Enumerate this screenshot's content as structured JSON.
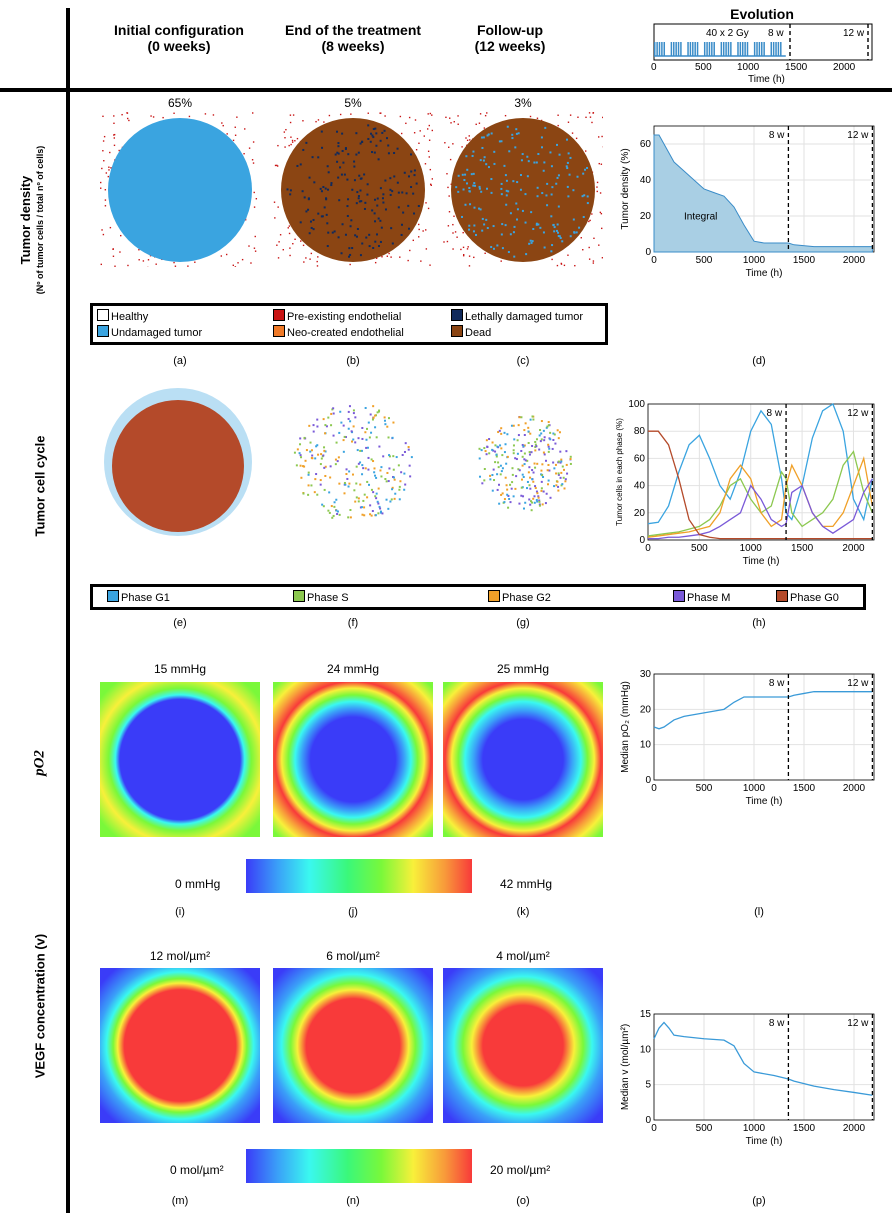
{
  "columns": [
    {
      "title": "Initial configuration",
      "sub": "(0 weeks)"
    },
    {
      "title": "End of the treatment",
      "sub": "(8 weeks)"
    },
    {
      "title": "Follow-up",
      "sub": "(12 weeks)"
    },
    {
      "title": "Evolution"
    }
  ],
  "evolution": {
    "annotation": "40 x 2 Gy",
    "m8": "8 w",
    "m12": "12 w",
    "xlabel": "Time (h)",
    "xticks": [
      "0",
      "500",
      "1000",
      "1500",
      "2000"
    ]
  },
  "rows": {
    "density": {
      "label": "Tumor density",
      "sublabel": "(Nº of tumor cells / total nº of cells)",
      "values": [
        "65%",
        "5%",
        "3%"
      ]
    },
    "cycle": {
      "label": "Tumor cell cycle"
    },
    "po2": {
      "label": "pO2",
      "values": [
        "15 mmHg",
        "24 mmHg",
        "25 mmHg"
      ],
      "cb_min": "0 mmHg",
      "cb_max": "42 mmHg"
    },
    "vegf": {
      "label": "VEGF concentration (v)",
      "values": [
        "12 mol/µm²",
        "6 mol/µm²",
        "4 mol/µm²"
      ],
      "cb_min": "0 mol/µm²",
      "cb_max": "20 mol/µm²"
    }
  },
  "legend1": [
    {
      "label": "Healthy",
      "color": "#ffffff"
    },
    {
      "label": "Undamaged tumor",
      "color": "#3aa4e0"
    },
    {
      "label": "Pre-existing endothelial",
      "color": "#c81414"
    },
    {
      "label": "Neo-created endothelial",
      "color": "#f07a28"
    },
    {
      "label": "Lethally damaged tumor",
      "color": "#102a5c"
    },
    {
      "label": "Dead",
      "color": "#8b4513"
    }
  ],
  "legend2": [
    {
      "label": "Phase G1",
      "color": "#3aa4e0"
    },
    {
      "label": "Phase S",
      "color": "#8cc850"
    },
    {
      "label": "Phase G2",
      "color": "#f0a028"
    },
    {
      "label": "Phase M",
      "color": "#7a5ad8"
    },
    {
      "label": "Phase G0",
      "color": "#b44a2a"
    }
  ],
  "captions": [
    "(a)",
    "(b)",
    "(c)",
    "(d)",
    "(e)",
    "(f)",
    "(g)",
    "(h)",
    "(i)",
    "(j)",
    "(k)",
    "(l)",
    "(m)",
    "(n)",
    "(o)",
    "(p)"
  ],
  "chart_data": [
    {
      "type": "area",
      "panel": "(d)",
      "xlabel": "Time (h)",
      "ylabel": "Tumor density (%)",
      "xlim": [
        0,
        2200
      ],
      "ylim": [
        0,
        70
      ],
      "xticks": [
        "0",
        "500",
        "1000",
        "1500",
        "2000"
      ],
      "yticks": [
        "0",
        "20",
        "40",
        "60"
      ],
      "annotation": "Integral",
      "vlines": [
        {
          "x": 1344,
          "label": "8 w"
        },
        {
          "x": 2184,
          "label": "12 w"
        }
      ],
      "x": [
        0,
        50,
        100,
        200,
        300,
        400,
        500,
        600,
        700,
        800,
        900,
        1000,
        1100,
        1200,
        1300,
        1344,
        1400,
        1600,
        1800,
        2000,
        2184
      ],
      "y": [
        65,
        65,
        60,
        50,
        45,
        40,
        35,
        33,
        31,
        25,
        15,
        6,
        5,
        5,
        5,
        5,
        4,
        3,
        3,
        3,
        3
      ]
    },
    {
      "type": "line",
      "panel": "(h)",
      "xlabel": "Time (h)",
      "ylabel": "Tumor cells in each phase (%)",
      "xlim": [
        0,
        2200
      ],
      "ylim": [
        0,
        100
      ],
      "xticks": [
        "0",
        "500",
        "1000",
        "1500",
        "2000"
      ],
      "yticks": [
        "0",
        "20",
        "40",
        "60",
        "80",
        "100"
      ],
      "vlines": [
        {
          "x": 1344,
          "label": "8 w"
        },
        {
          "x": 2184,
          "label": "12 w"
        }
      ],
      "x": [
        0,
        100,
        200,
        300,
        400,
        500,
        600,
        700,
        800,
        900,
        1000,
        1100,
        1200,
        1300,
        1344,
        1400,
        1500,
        1600,
        1700,
        1800,
        1900,
        2000,
        2100,
        2184
      ],
      "series": [
        {
          "name": "Phase G1",
          "color": "#3aa4e0",
          "values": [
            12,
            13,
            25,
            50,
            70,
            77,
            60,
            40,
            30,
            50,
            80,
            95,
            85,
            45,
            20,
            15,
            40,
            75,
            95,
            100,
            80,
            30,
            15,
            45
          ]
        },
        {
          "name": "Phase S",
          "color": "#8cc850",
          "values": [
            3,
            4,
            5,
            6,
            8,
            10,
            15,
            25,
            40,
            45,
            30,
            20,
            25,
            50,
            45,
            20,
            10,
            15,
            20,
            30,
            55,
            65,
            35,
            20
          ]
        },
        {
          "name": "Phase G2",
          "color": "#f0a028",
          "values": [
            2,
            3,
            4,
            5,
            6,
            8,
            10,
            20,
            45,
            55,
            45,
            20,
            10,
            15,
            40,
            55,
            40,
            20,
            10,
            10,
            20,
            40,
            60,
            25
          ]
        },
        {
          "name": "Phase M",
          "color": "#7a5ad8",
          "values": [
            1,
            1,
            2,
            2,
            3,
            4,
            6,
            10,
            15,
            20,
            40,
            30,
            15,
            10,
            12,
            35,
            40,
            20,
            10,
            5,
            10,
            15,
            35,
            45
          ]
        },
        {
          "name": "Phase G0",
          "color": "#b44a2a",
          "values": [
            80,
            80,
            70,
            45,
            15,
            4,
            2,
            1,
            1,
            1,
            1,
            1,
            1,
            1,
            1,
            1,
            1,
            1,
            1,
            1,
            1,
            1,
            1,
            1
          ]
        }
      ]
    },
    {
      "type": "line",
      "panel": "(l)",
      "xlabel": "Time (h)",
      "ylabel": "Median pO₂ (mmHg)",
      "xlim": [
        0,
        2200
      ],
      "ylim": [
        0,
        30
      ],
      "xticks": [
        "0",
        "500",
        "1000",
        "1500",
        "2000"
      ],
      "yticks": [
        "0",
        "10",
        "20",
        "30"
      ],
      "vlines": [
        {
          "x": 1344,
          "label": "8 w"
        },
        {
          "x": 2184,
          "label": "12 w"
        }
      ],
      "x": [
        0,
        50,
        100,
        200,
        300,
        500,
        700,
        800,
        900,
        1000,
        1200,
        1344,
        1400,
        1500,
        1600,
        1800,
        2000,
        2184
      ],
      "y": [
        15,
        14.5,
        15,
        17,
        18,
        19,
        20,
        22,
        23.5,
        23.5,
        23.5,
        23.5,
        24,
        24.5,
        25,
        25,
        25,
        25
      ]
    },
    {
      "type": "line",
      "panel": "(p)",
      "xlabel": "Time (h)",
      "ylabel": "Median v (mol/µm²)",
      "xlim": [
        0,
        2200
      ],
      "ylim": [
        0,
        15
      ],
      "xticks": [
        "0",
        "500",
        "1000",
        "1500",
        "2000"
      ],
      "yticks": [
        "0",
        "5",
        "10",
        "15"
      ],
      "vlines": [
        {
          "x": 1344,
          "label": "8 w"
        },
        {
          "x": 2184,
          "label": "12 w"
        }
      ],
      "x": [
        0,
        50,
        100,
        150,
        200,
        300,
        500,
        700,
        800,
        900,
        1000,
        1200,
        1344,
        1400,
        1600,
        1800,
        2000,
        2184
      ],
      "y": [
        11.5,
        13,
        13.8,
        13,
        12,
        11.8,
        11.5,
        11.3,
        10.5,
        8,
        6.8,
        6.3,
        5.8,
        5.5,
        4.8,
        4.3,
        3.9,
        3.5
      ]
    }
  ]
}
